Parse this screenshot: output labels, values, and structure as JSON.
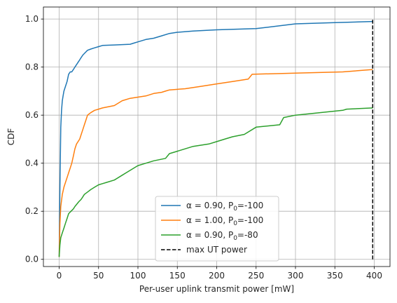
{
  "chart_data": {
    "type": "line",
    "title": "",
    "xlabel": "Per-user uplink transmit power [mW]",
    "ylabel": "CDF",
    "xlim": [
      -20,
      420
    ],
    "ylim": [
      -0.03,
      1.05
    ],
    "xticks": [
      0,
      50,
      100,
      150,
      200,
      250,
      300,
      350,
      400
    ],
    "yticks": [
      0.0,
      0.2,
      0.4,
      0.6,
      0.8,
      1.0
    ],
    "xtick_labels": [
      "0",
      "50",
      "100",
      "150",
      "200",
      "250",
      "300",
      "350",
      "400"
    ],
    "ytick_labels": [
      "0.0",
      "0.2",
      "0.4",
      "0.6",
      "0.8",
      "1.0"
    ],
    "grid": true,
    "legend_position": "lower-center",
    "series": [
      {
        "name": "α = 0.90, P0=-100",
        "legend": {
          "main": "α = 0.90, P",
          "sub": "0",
          "tail": "=-100"
        },
        "color": "#1f77b4",
        "x": [
          0,
          1,
          2,
          3,
          4,
          5,
          6,
          8,
          10,
          12,
          14,
          16,
          18,
          20,
          22,
          24,
          26,
          28,
          30,
          33,
          36,
          40,
          45,
          50,
          55,
          70,
          90,
          95,
          100,
          110,
          120,
          130,
          140,
          150,
          170,
          200,
          250,
          300,
          350,
          398
        ],
        "y": [
          0.01,
          0.3,
          0.55,
          0.62,
          0.66,
          0.68,
          0.7,
          0.72,
          0.74,
          0.77,
          0.78,
          0.78,
          0.79,
          0.8,
          0.81,
          0.82,
          0.83,
          0.84,
          0.85,
          0.86,
          0.87,
          0.875,
          0.88,
          0.885,
          0.89,
          0.892,
          0.895,
          0.9,
          0.905,
          0.915,
          0.92,
          0.93,
          0.94,
          0.945,
          0.95,
          0.955,
          0.96,
          0.98,
          0.985,
          0.99
        ]
      },
      {
        "name": "α = 1.00, P0=-100",
        "legend": {
          "main": "α = 1.00, P",
          "sub": "0",
          "tail": "=-100"
        },
        "color": "#ff7f0e",
        "x": [
          0,
          1,
          2,
          4,
          6,
          8,
          10,
          12,
          14,
          16,
          18,
          20,
          22,
          24,
          26,
          28,
          30,
          32,
          34,
          36,
          40,
          45,
          50,
          55,
          70,
          80,
          90,
          100,
          110,
          120,
          130,
          135,
          140,
          160,
          180,
          200,
          220,
          240,
          245,
          300,
          360,
          398
        ],
        "y": [
          0.01,
          0.15,
          0.22,
          0.27,
          0.3,
          0.32,
          0.34,
          0.36,
          0.38,
          0.4,
          0.43,
          0.46,
          0.48,
          0.49,
          0.5,
          0.52,
          0.54,
          0.56,
          0.58,
          0.6,
          0.61,
          0.62,
          0.625,
          0.63,
          0.64,
          0.66,
          0.67,
          0.675,
          0.68,
          0.69,
          0.695,
          0.7,
          0.705,
          0.71,
          0.72,
          0.73,
          0.74,
          0.75,
          0.77,
          0.775,
          0.78,
          0.79
        ]
      },
      {
        "name": "α = 0.90, P0=-80",
        "legend": {
          "main": "α = 0.90, P",
          "sub": "0",
          "tail": "=-80"
        },
        "color": "#2ca02c",
        "x": [
          0,
          1,
          2,
          4,
          6,
          8,
          10,
          12,
          15,
          18,
          20,
          25,
          28,
          32,
          36,
          40,
          45,
          50,
          55,
          60,
          70,
          80,
          85,
          95,
          100,
          110,
          120,
          135,
          140,
          150,
          170,
          180,
          190,
          200,
          210,
          220,
          235,
          250,
          280,
          285,
          300,
          330,
          360,
          365,
          398
        ],
        "y": [
          0.01,
          0.06,
          0.09,
          0.11,
          0.13,
          0.15,
          0.17,
          0.19,
          0.2,
          0.21,
          0.22,
          0.24,
          0.25,
          0.27,
          0.28,
          0.29,
          0.3,
          0.31,
          0.315,
          0.32,
          0.33,
          0.35,
          0.36,
          0.38,
          0.39,
          0.4,
          0.41,
          0.42,
          0.44,
          0.45,
          0.47,
          0.475,
          0.48,
          0.49,
          0.5,
          0.51,
          0.52,
          0.55,
          0.56,
          0.59,
          0.6,
          0.61,
          0.62,
          0.625,
          0.63
        ]
      },
      {
        "name": "max UT power",
        "legend": {
          "main": "max UT power",
          "sub": "",
          "tail": ""
        },
        "color": "#000000",
        "dashed": true,
        "x": [
          398,
          398
        ],
        "y": [
          0.0,
          1.0
        ]
      }
    ]
  }
}
